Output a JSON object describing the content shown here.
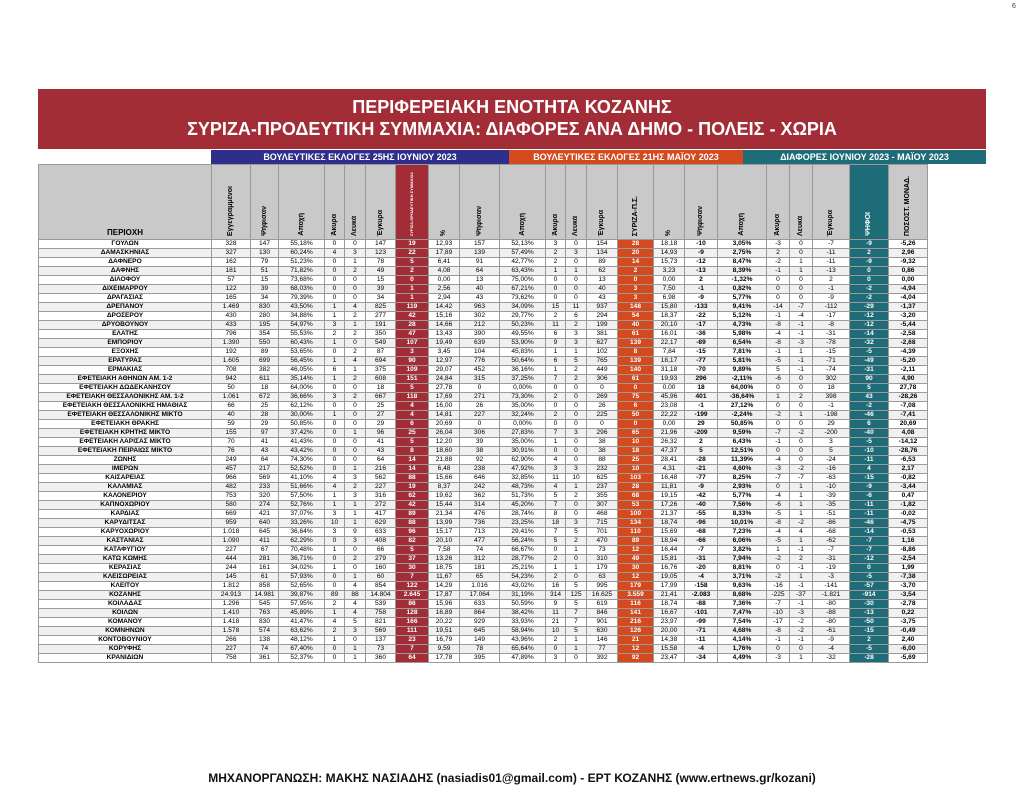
{
  "page_number": "6",
  "title_line1": "ΠΕΡΙΦΕΡΕΙΑΚΗ ΕΝΟΤΗΤΑ ΚΟΖΑΝΗΣ",
  "title_line2": "ΣΥΡΙΖΑ-ΠΡΟΔΕΥΤΙΚΗ ΣΥΜΜΑΧΙΑ: ΔΙΑΦΟΡΕΣ ΑΝΑ ΔΗΜΟ - ΠΟΛΕΙΣ - ΧΩΡΙΑ",
  "band_june": "ΒΟΥΛΕΥΤΙΚΕΣ ΕΚΛΟΓΕΣ 25ΗΣ ΙΟΥΝΙΟΥ 2023",
  "band_may": "ΒΟΥΛΕΥΤΙΚΕΣ ΕΚΛΟΓΕΣ 21ΗΣ ΜΑΪΟΥ 2023",
  "band_diff": "ΔΙΑΦΟΡΕΣ ΙΟΥΝΙΟΥ 2023 - ΜΑΪΟΥ 2023",
  "headers": [
    "ΠΕΡΙΟΧΗ",
    "Εγγεγραμμένοι",
    "Ψήφισαν",
    "Αποχή",
    "Άκυρα",
    "Λευκά",
    "Έγκυρα",
    "ΣΥΡΙΖΑ-ΠΡΟΔΕΥΤΙΚΗ ΣΥΜΜΑΧΙΑ",
    "%",
    "Ψήφισαν",
    "Αποχή",
    "Άκυρα",
    "Λευκά",
    "Έγκυρα",
    "ΣΥΡΙΖΑ-Π.Σ.",
    "%",
    "Ψήφισαν",
    "Αποχή",
    "Άκυρα",
    "Λευκά",
    "Έγκυρα",
    "ΨΗΦΟΙ",
    "ΠΟΣΟΣΤ. ΜΟΝΑΔ."
  ],
  "rows": [
    [
      "ΓΟΥΛΩΝ",
      "328",
      "147",
      "55,18%",
      "0",
      "0",
      "147",
      "19",
      "12,93",
      "157",
      "52,13%",
      "3",
      "0",
      "154",
      "28",
      "18,18",
      "-10",
      "3,05%",
      "-3",
      "0",
      "-7",
      "-9",
      "-5,26"
    ],
    [
      "ΔΑΜΑΣΚΗΝΙΑΣ",
      "327",
      "130",
      "60,24%",
      "4",
      "3",
      "123",
      "22",
      "17,89",
      "139",
      "57,49%",
      "2",
      "3",
      "134",
      "20",
      "14,93",
      "-9",
      "2,75%",
      "2",
      "0",
      "-11",
      "2",
      "2,96"
    ],
    [
      "ΔΑΦΝΕΡΟ",
      "162",
      "79",
      "51,23%",
      "0",
      "1",
      "78",
      "5",
      "6,41",
      "91",
      "42,77%",
      "2",
      "0",
      "89",
      "14",
      "15,73",
      "-12",
      "8,47%",
      "-2",
      "1",
      "-11",
      "-9",
      "-9,32"
    ],
    [
      "ΔΑΦΝΗΣ",
      "181",
      "51",
      "71,82%",
      "0",
      "2",
      "49",
      "2",
      "4,08",
      "64",
      "63,43%",
      "1",
      "1",
      "62",
      "2",
      "3,23",
      "-13",
      "8,39%",
      "-1",
      "1",
      "-13",
      "0",
      "0,86"
    ],
    [
      "ΔΙΛΟΦΟΥ",
      "57",
      "15",
      "73,68%",
      "0",
      "0",
      "15",
      "0",
      "0,00",
      "13",
      "75,00%",
      "0",
      "0",
      "13",
      "0",
      "0,00",
      "2",
      "-1,32%",
      "0",
      "0",
      "2",
      "0",
      "0,00"
    ],
    [
      "ΔΙΧΕΙΜΑΡΡΟΥ",
      "122",
      "39",
      "68,03%",
      "0",
      "0",
      "39",
      "1",
      "2,56",
      "40",
      "67,21%",
      "0",
      "0",
      "40",
      "3",
      "7,50",
      "-1",
      "0,82%",
      "0",
      "0",
      "-1",
      "-2",
      "-4,94"
    ],
    [
      "ΔΡΑΓΑΣΙΑΣ",
      "165",
      "34",
      "79,39%",
      "0",
      "0",
      "34",
      "1",
      "2,94",
      "43",
      "73,62%",
      "0",
      "0",
      "43",
      "3",
      "6,98",
      "-9",
      "5,77%",
      "0",
      "0",
      "-9",
      "-2",
      "-4,04"
    ],
    [
      "ΔΡΕΠΑΝΟΥ",
      "1.469",
      "830",
      "43,50%",
      "1",
      "4",
      "825",
      "119",
      "14,42",
      "963",
      "34,09%",
      "15",
      "11",
      "937",
      "148",
      "15,80",
      "-133",
      "9,41%",
      "-14",
      "-7",
      "-112",
      "-29",
      "-1,37"
    ],
    [
      "ΔΡΟΣΕΡΟΥ",
      "430",
      "280",
      "34,88%",
      "1",
      "2",
      "277",
      "42",
      "15,16",
      "302",
      "29,77%",
      "2",
      "6",
      "294",
      "54",
      "18,37",
      "-22",
      "5,12%",
      "-1",
      "-4",
      "-17",
      "-12",
      "-3,20"
    ],
    [
      "ΔΡΥΟΒΟΥΝΟΥ",
      "433",
      "195",
      "54,97%",
      "3",
      "1",
      "191",
      "28",
      "14,66",
      "212",
      "50,23%",
      "11",
      "2",
      "199",
      "40",
      "20,10",
      "-17",
      "4,73%",
      "-8",
      "-1",
      "-8",
      "-12",
      "-5,44"
    ],
    [
      "ΕΛΑΤΗΣ",
      "796",
      "354",
      "55,53%",
      "2",
      "2",
      "350",
      "47",
      "13,43",
      "390",
      "49,55%",
      "6",
      "3",
      "381",
      "61",
      "16,01",
      "-36",
      "5,98%",
      "-4",
      "-1",
      "-31",
      "-14",
      "-2,58"
    ],
    [
      "ΕΜΠΟΡΙΟΥ",
      "1.390",
      "550",
      "60,43%",
      "1",
      "0",
      "549",
      "107",
      "19,49",
      "639",
      "53,90%",
      "9",
      "3",
      "627",
      "139",
      "22,17",
      "-89",
      "6,54%",
      "-8",
      "-3",
      "-78",
      "-32",
      "-2,68"
    ],
    [
      "ΕΞΟΧΗΣ",
      "192",
      "89",
      "53,65%",
      "0",
      "2",
      "87",
      "3",
      "3,45",
      "104",
      "45,83%",
      "1",
      "1",
      "102",
      "8",
      "7,84",
      "-15",
      "7,81%",
      "-1",
      "1",
      "-15",
      "-5",
      "-4,39"
    ],
    [
      "ΕΡΑΤΥΡΑΣ",
      "1.605",
      "699",
      "56,45%",
      "1",
      "4",
      "694",
      "90",
      "12,97",
      "776",
      "50,64%",
      "6",
      "5",
      "765",
      "139",
      "18,17",
      "-77",
      "5,81%",
      "-5",
      "-1",
      "-71",
      "-49",
      "-5,20"
    ],
    [
      "ΕΡΜΑΚΙΑΣ",
      "708",
      "382",
      "46,05%",
      "6",
      "1",
      "375",
      "109",
      "29,07",
      "452",
      "36,16%",
      "1",
      "2",
      "449",
      "140",
      "31,18",
      "-70",
      "9,89%",
      "5",
      "-1",
      "-74",
      "-31",
      "-2,11"
    ],
    [
      "ΕΦΕΤΕΙΑΚΗ ΑΘΗΝΩΝ ΑΜ. 1-2",
      "942",
      "611",
      "35,14%",
      "1",
      "2",
      "608",
      "151",
      "24,84",
      "315",
      "37,25%",
      "7",
      "2",
      "306",
      "61",
      "19,93",
      "296",
      "-2,11%",
      "-6",
      "0",
      "302",
      "90",
      "4,90"
    ],
    [
      "ΕΦΕΤΕΙΑΚΗ ΔΩΔΕΚΑΝΗΣΟΥ",
      "50",
      "18",
      "64,00%",
      "0",
      "0",
      "18",
      "5",
      "27,78",
      "0",
      "0,00%",
      "0",
      "0",
      "0",
      "0",
      "0,00",
      "18",
      "64,00%",
      "0",
      "0",
      "18",
      "5",
      "27,78"
    ],
    [
      "ΕΦΕΤΕΙΑΚΗ ΘΕΣΣΑΛΟΝΙΚΗΣ ΑΜ. 1-2",
      "1.061",
      "672",
      "36,66%",
      "3",
      "2",
      "667",
      "118",
      "17,69",
      "271",
      "73,30%",
      "2",
      "0",
      "269",
      "75",
      "45,96",
      "401",
      "-36,64%",
      "1",
      "2",
      "398",
      "43",
      "-28,26"
    ],
    [
      "ΕΦΕΤΕΙΑΚΗ ΘΕΣΣΑΛΟΝΙΚΗΣ ΗΜΑΘΙΑΣ",
      "66",
      "25",
      "62,12%",
      "0",
      "0",
      "25",
      "4",
      "16,00",
      "26",
      "35,00%",
      "0",
      "0",
      "26",
      "6",
      "23,08",
      "-1",
      "27,12%",
      "0",
      "0",
      "-1",
      "-2",
      "-7,08"
    ],
    [
      "ΕΦΕΤΕΙΑΚΗ ΘΕΣΣΑΛΟΝΙΚΗΣ ΜΙΚΤΟ",
      "40",
      "28",
      "30,00%",
      "1",
      "0",
      "27",
      "4",
      "14,81",
      "227",
      "32,24%",
      "2",
      "0",
      "225",
      "50",
      "22,22",
      "-199",
      "-2,24%",
      "-2",
      "1",
      "-198",
      "-46",
      "-7,41"
    ],
    [
      "ΕΦΕΤΕΙΑΚΗ ΘΡΑΚΗΣ",
      "59",
      "29",
      "50,85%",
      "0",
      "0",
      "29",
      "6",
      "20,69",
      "0",
      "0,00%",
      "0",
      "0",
      "0",
      "0",
      "0,00",
      "29",
      "50,85%",
      "0",
      "0",
      "29",
      "6",
      "20,69"
    ],
    [
      "ΕΦΕΤΕΙΑΚΗ ΚΡΗΤΗΣ ΜΙΚΤΟ",
      "155",
      "97",
      "37,42%",
      "0",
      "1",
      "96",
      "25",
      "26,04",
      "306",
      "27,83%",
      "7",
      "3",
      "296",
      "65",
      "21,96",
      "-209",
      "9,59%",
      "-7",
      "-2",
      "-200",
      "-40",
      "4,08"
    ],
    [
      "ΕΦΕΤΕΙΑΚΗ ΛΑΡΙΣΑΣ ΜΙΚΤΟ",
      "70",
      "41",
      "41,43%",
      "0",
      "0",
      "41",
      "5",
      "12,20",
      "39",
      "35,00%",
      "1",
      "0",
      "38",
      "10",
      "26,32",
      "2",
      "6,43%",
      "-1",
      "0",
      "3",
      "-5",
      "-14,12"
    ],
    [
      "ΕΦΕΤΕΙΑΚΗ ΠΕΙΡΑΙΩΣ ΜΙΚΤΟ",
      "76",
      "43",
      "43,42%",
      "0",
      "0",
      "43",
      "8",
      "18,60",
      "38",
      "30,91%",
      "0",
      "0",
      "38",
      "18",
      "47,37",
      "5",
      "12,51%",
      "0",
      "0",
      "5",
      "-10",
      "-28,76"
    ],
    [
      "ΖΩΝΗΣ",
      "249",
      "64",
      "74,30%",
      "0",
      "0",
      "64",
      "14",
      "21,88",
      "92",
      "62,90%",
      "4",
      "0",
      "88",
      "25",
      "28,41",
      "-28",
      "11,39%",
      "-4",
      "0",
      "-24",
      "-11",
      "-6,53"
    ],
    [
      "ΙΜΕΡΩΝ",
      "457",
      "217",
      "52,52%",
      "0",
      "1",
      "216",
      "14",
      "6,48",
      "238",
      "47,92%",
      "3",
      "3",
      "232",
      "10",
      "4,31",
      "-21",
      "4,60%",
      "-3",
      "-2",
      "-16",
      "4",
      "2,17"
    ],
    [
      "ΚΑΙΣΑΡΕΙΑΣ",
      "966",
      "569",
      "41,10%",
      "4",
      "3",
      "562",
      "88",
      "15,66",
      "646",
      "32,85%",
      "11",
      "10",
      "625",
      "103",
      "16,48",
      "-77",
      "8,25%",
      "-7",
      "-7",
      "-63",
      "-15",
      "-0,82"
    ],
    [
      "ΚΑΛΑΜΙΑΣ",
      "482",
      "233",
      "51,66%",
      "4",
      "2",
      "227",
      "19",
      "8,37",
      "242",
      "48,73%",
      "4",
      "1",
      "237",
      "28",
      "11,81",
      "-9",
      "2,93%",
      "0",
      "1",
      "-10",
      "-9",
      "-3,44"
    ],
    [
      "ΚΑΛΟΝΕΡΙΟΥ",
      "753",
      "320",
      "57,50%",
      "1",
      "3",
      "316",
      "62",
      "19,62",
      "362",
      "51,73%",
      "5",
      "2",
      "355",
      "68",
      "19,15",
      "-42",
      "5,77%",
      "-4",
      "1",
      "-39",
      "-6",
      "0,47"
    ],
    [
      "ΚΑΠΝΟΧΩΡΙΟΥ",
      "580",
      "274",
      "52,76%",
      "1",
      "1",
      "272",
      "42",
      "15,44",
      "314",
      "45,20%",
      "7",
      "0",
      "307",
      "53",
      "17,26",
      "-40",
      "7,56%",
      "-6",
      "1",
      "-35",
      "-11",
      "-1,82"
    ],
    [
      "ΚΑΡΔΙΑΣ",
      "669",
      "421",
      "37,07%",
      "3",
      "1",
      "417",
      "89",
      "21,34",
      "476",
      "28,74%",
      "8",
      "0",
      "468",
      "100",
      "21,37",
      "-55",
      "8,33%",
      "-5",
      "1",
      "-51",
      "-11",
      "-0,02"
    ],
    [
      "ΚΑΡΥΔΙΤΣΑΣ",
      "959",
      "640",
      "33,26%",
      "10",
      "1",
      "629",
      "88",
      "13,99",
      "736",
      "23,25%",
      "18",
      "3",
      "715",
      "134",
      "18,74",
      "-96",
      "10,01%",
      "-8",
      "-2",
      "-86",
      "-46",
      "-4,75"
    ],
    [
      "ΚΑΡΥΟΧΩΡΙΟΥ",
      "1.018",
      "645",
      "36,64%",
      "3",
      "9",
      "633",
      "96",
      "15,17",
      "713",
      "29,41%",
      "7",
      "5",
      "701",
      "110",
      "15,69",
      "-68",
      "7,23%",
      "-4",
      "4",
      "-68",
      "-14",
      "-0,53"
    ],
    [
      "ΚΑΣΤΑΝΙΑΣ",
      "1.090",
      "411",
      "62,29%",
      "0",
      "3",
      "408",
      "82",
      "20,10",
      "477",
      "56,24%",
      "5",
      "2",
      "470",
      "89",
      "18,94",
      "-66",
      "6,06%",
      "-5",
      "1",
      "-62",
      "-7",
      "1,16"
    ],
    [
      "ΚΑΤΑΦΥΓΙΟΥ",
      "227",
      "67",
      "70,48%",
      "1",
      "0",
      "66",
      "5",
      "7,58",
      "74",
      "66,67%",
      "0",
      "1",
      "73",
      "12",
      "16,44",
      "-7",
      "3,82%",
      "1",
      "-1",
      "-7",
      "-7",
      "-8,86"
    ],
    [
      "ΚΑΤΩ ΚΩΜΗΣ",
      "444",
      "281",
      "36,71%",
      "0",
      "2",
      "279",
      "37",
      "13,26",
      "312",
      "28,77%",
      "2",
      "0",
      "310",
      "49",
      "15,81",
      "-31",
      "7,94%",
      "-2",
      "2",
      "-31",
      "-12",
      "-2,54"
    ],
    [
      "ΚΕΡΑΣΙΑΣ",
      "244",
      "161",
      "34,02%",
      "1",
      "0",
      "160",
      "30",
      "18,75",
      "181",
      "25,21%",
      "1",
      "1",
      "179",
      "30",
      "16,76",
      "-20",
      "8,81%",
      "0",
      "-1",
      "-19",
      "0",
      "1,99"
    ],
    [
      "ΚΛΕΙΣΩΡΕΙΑΣ",
      "145",
      "61",
      "57,93%",
      "0",
      "1",
      "60",
      "7",
      "11,67",
      "65",
      "54,23%",
      "2",
      "0",
      "63",
      "12",
      "19,05",
      "-4",
      "3,71%",
      "-2",
      "1",
      "-3",
      "-5",
      "-7,38"
    ],
    [
      "ΚΛΕΙΤΟΥ",
      "1.812",
      "858",
      "52,65%",
      "0",
      "4",
      "854",
      "122",
      "14,29",
      "1.016",
      "43,02%",
      "16",
      "5",
      "995",
      "179",
      "17,99",
      "-158",
      "9,63%",
      "-16",
      "-1",
      "-141",
      "-57",
      "-3,70"
    ],
    [
      "ΚΟΖΑΝΗΣ",
      "24.913",
      "14.981",
      "39,87%",
      "89",
      "88",
      "14.804",
      "2.645",
      "17,87",
      "17.064",
      "31,19%",
      "314",
      "125",
      "16.625",
      "3.559",
      "21,41",
      "-2.083",
      "8,68%",
      "-225",
      "-37",
      "-1.821",
      "-914",
      "-3,54"
    ],
    [
      "ΚΟΙΛΑΔΑΣ",
      "1.296",
      "545",
      "57,95%",
      "2",
      "4",
      "539",
      "86",
      "15,96",
      "633",
      "50,59%",
      "9",
      "5",
      "619",
      "116",
      "18,74",
      "-88",
      "7,36%",
      "-7",
      "-1",
      "-80",
      "-30",
      "-2,78"
    ],
    [
      "ΚΟΙΛΩΝ",
      "1.410",
      "763",
      "45,89%",
      "1",
      "4",
      "758",
      "128",
      "16,89",
      "864",
      "38,42%",
      "11",
      "7",
      "846",
      "141",
      "16,67",
      "-101",
      "7,47%",
      "-10",
      "-3",
      "-88",
      "-13",
      "0,22"
    ],
    [
      "ΚΟΜΑΝΟΥ",
      "1.418",
      "830",
      "41,47%",
      "4",
      "5",
      "821",
      "166",
      "20,22",
      "929",
      "33,93%",
      "21",
      "7",
      "901",
      "216",
      "23,97",
      "-99",
      "7,54%",
      "-17",
      "-2",
      "-80",
      "-50",
      "-3,75"
    ],
    [
      "ΚΟΜΝΗΝΩΝ",
      "1.578",
      "574",
      "63,62%",
      "2",
      "3",
      "569",
      "111",
      "19,51",
      "645",
      "58,94%",
      "10",
      "5",
      "630",
      "126",
      "20,00",
      "-71",
      "4,68%",
      "-8",
      "-2",
      "-61",
      "-15",
      "-0,49"
    ],
    [
      "ΚΟΝΤΟΒΟΥΝΙΟΥ",
      "266",
      "138",
      "48,12%",
      "1",
      "0",
      "137",
      "23",
      "16,79",
      "149",
      "43,96%",
      "2",
      "1",
      "146",
      "21",
      "14,38",
      "-11",
      "4,14%",
      "-1",
      "-1",
      "-9",
      "2",
      "2,40"
    ],
    [
      "ΚΟΡΥΦΗΣ",
      "227",
      "74",
      "67,40%",
      "0",
      "1",
      "73",
      "7",
      "9,59",
      "78",
      "65,64%",
      "0",
      "1",
      "77",
      "12",
      "15,58",
      "-4",
      "1,76%",
      "0",
      "0",
      "-4",
      "-5",
      "-6,00"
    ],
    [
      "ΚΡΑΝΙΔΙΩΝ",
      "758",
      "361",
      "52,37%",
      "0",
      "1",
      "360",
      "64",
      "17,78",
      "395",
      "47,89%",
      "3",
      "0",
      "392",
      "92",
      "23,47",
      "-34",
      "4,49%",
      "-3",
      "1",
      "-32",
      "-28",
      "-5,69"
    ]
  ],
  "footer": "ΜΗΧΑΝΟΡΓΑΝΩΣΗ: ΜΑΚΗΣ ΝΑΣΙΑΔΗΣ (nasiadis01@gmail.com) - ΕΡΤ ΚΟΖΑΝΗΣ (www.ertnews.gr/kozani)"
}
